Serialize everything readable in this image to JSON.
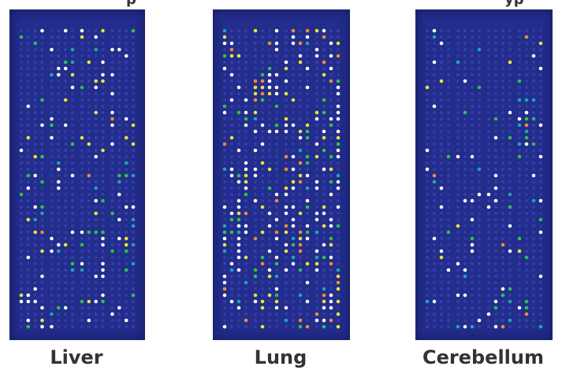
{
  "panels": [
    {
      "id": "liver",
      "label": "Liver",
      "seed": 11
    },
    {
      "id": "lung",
      "label": "Lung",
      "seed": 29
    },
    {
      "id": "cerebellum",
      "label": "Cerebellum",
      "seed": 47
    }
  ],
  "colors": {
    "membrane": "#232d8c",
    "spot_faint": "#3a47b8",
    "spot_white": "#ffffff",
    "spot_green": "#2fc24a",
    "spot_teal": "#1fa5b5",
    "spot_yellow": "#e8e53a",
    "spot_orange": "#f08a3a",
    "label_text": "#333333"
  }
}
